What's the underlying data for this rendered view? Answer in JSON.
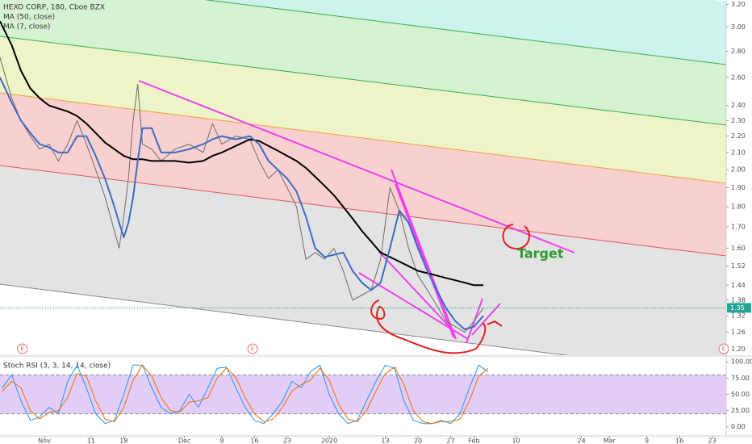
{
  "chart_data": [
    {
      "type": "line",
      "title": "HEXO CORP, 180, Cboe BZX",
      "log_scale": true,
      "x": [
        -9.5,
        -7,
        -5,
        -3,
        -1,
        1,
        3,
        5,
        7,
        9,
        11,
        13,
        15,
        16,
        17,
        18,
        19,
        20,
        21,
        23,
        25,
        28,
        31,
        34,
        36,
        38,
        41,
        44,
        46,
        48,
        50,
        52,
        54,
        56,
        58,
        60,
        62,
        64,
        66,
        68,
        70,
        72,
        74,
        76,
        78,
        80,
        82,
        84,
        86,
        88,
        90,
        92,
        94
      ],
      "series": [
        {
          "name": "HEXO CORP, 180, Cboe BZX",
          "color": "#6d6d6d",
          "values": [
            2.75,
            2.45,
            2.3,
            2.2,
            2.12,
            2.15,
            2.05,
            2.15,
            2.3,
            2.15,
            2.0,
            1.85,
            1.68,
            1.6,
            1.75,
            1.95,
            2.3,
            2.55,
            2.15,
            2.12,
            2.05,
            2.12,
            2.15,
            2.1,
            2.28,
            2.15,
            2.2,
            2.18,
            2.05,
            1.95,
            2.0,
            1.9,
            1.8,
            1.55,
            1.58,
            1.55,
            1.6,
            1.5,
            1.38,
            1.4,
            1.42,
            1.55,
            1.9,
            1.78,
            1.6,
            1.48,
            1.42,
            1.36,
            1.3,
            1.28,
            1.26,
            1.3,
            1.35
          ]
        },
        {
          "name": "MA (50, close)",
          "color": "#000000",
          "values": [
            3.05,
            2.85,
            2.65,
            2.52,
            2.45,
            2.4,
            2.38,
            2.36,
            2.33,
            2.28,
            2.22,
            2.16,
            2.12,
            2.1,
            2.08,
            2.07,
            2.06,
            2.06,
            2.06,
            2.05,
            2.05,
            2.05,
            2.04,
            2.05,
            2.08,
            2.1,
            2.14,
            2.18,
            2.17,
            2.14,
            2.11,
            2.08,
            2.05,
            2.01,
            1.96,
            1.91,
            1.86,
            1.8,
            1.74,
            1.68,
            1.63,
            1.58,
            1.56,
            1.54,
            1.52,
            1.5,
            1.49,
            1.48,
            1.47,
            1.46,
            1.45,
            1.44,
            1.44
          ]
        },
        {
          "name": "MA (7, close)",
          "color": "#3b6cc4",
          "values": [
            2.6,
            2.42,
            2.3,
            2.22,
            2.15,
            2.13,
            2.1,
            2.1,
            2.2,
            2.2,
            2.08,
            1.95,
            1.8,
            1.72,
            1.65,
            1.72,
            1.85,
            2.05,
            2.25,
            2.25,
            2.1,
            2.1,
            2.12,
            2.15,
            2.18,
            2.2,
            2.18,
            2.2,
            2.15,
            2.05,
            2.0,
            1.95,
            1.88,
            1.75,
            1.6,
            1.56,
            1.57,
            1.58,
            1.5,
            1.45,
            1.42,
            1.45,
            1.6,
            1.78,
            1.72,
            1.6,
            1.5,
            1.42,
            1.35,
            1.3,
            1.27,
            1.28,
            1.32
          ]
        }
      ],
      "last_price": 1.35,
      "annotations": [
        "Target"
      ],
      "earnings_markers": [
        {
          "x": -4.7,
          "label": "E"
        },
        {
          "x": 44.6,
          "label": "E"
        },
        {
          "x": 145.5,
          "label": "E"
        }
      ],
      "xlim": [
        -9.5,
        146
      ],
      "ylim": [
        1.18,
        3.24
      ],
      "xticks": [
        {
          "value": 0,
          "label": "Nov"
        },
        {
          "value": 10,
          "label": "11"
        },
        {
          "value": 17,
          "label": "18"
        },
        {
          "value": 30,
          "label": "Dec"
        },
        {
          "value": 38,
          "label": "9"
        },
        {
          "value": 45,
          "label": "16"
        },
        {
          "value": 52,
          "label": "23"
        },
        {
          "value": 61,
          "label": "2020"
        },
        {
          "value": 73,
          "label": "13"
        },
        {
          "value": 80,
          "label": "20"
        },
        {
          "value": 87,
          "label": "27"
        },
        {
          "value": 92,
          "label": "Feb"
        },
        {
          "value": 101,
          "label": "10"
        },
        {
          "value": 115,
          "label": "24"
        },
        {
          "value": 121,
          "label": "Mar"
        },
        {
          "value": 129,
          "label": "9"
        },
        {
          "value": 136,
          "label": "16"
        },
        {
          "value": 143,
          "label": "23"
        }
      ],
      "yticks": [
        {
          "value": 3.2,
          "label": "3.20"
        },
        {
          "value": 3.0,
          "label": "3.00"
        },
        {
          "value": 2.8,
          "label": "2.80"
        },
        {
          "value": 2.6,
          "label": "2.60"
        },
        {
          "value": 2.4,
          "label": "2.40"
        },
        {
          "value": 2.3,
          "label": "2.30"
        },
        {
          "value": 2.2,
          "label": "2.20"
        },
        {
          "value": 2.1,
          "label": "2.10"
        },
        {
          "value": 2.0,
          "label": "2.00"
        },
        {
          "value": 1.9,
          "label": "1.90"
        },
        {
          "value": 1.8,
          "label": "1.80"
        },
        {
          "value": 1.7,
          "label": "1.70"
        },
        {
          "value": 1.6,
          "label": "1.60"
        },
        1.52,
        1.44,
        1.38,
        1.32,
        1.26,
        {
          "value": 1.2,
          "label": "1.20"
        }
      ]
    },
    {
      "type": "line",
      "title": "Stoch RSI (3, 3, 14, 14, close)",
      "x": [
        -9,
        -7,
        -5,
        -3,
        -1,
        1,
        3,
        5,
        7,
        9,
        11,
        13,
        15,
        17,
        19,
        21,
        23,
        25,
        27,
        29,
        31,
        33,
        35,
        37,
        39,
        41,
        43,
        45,
        47,
        49,
        51,
        53,
        55,
        57,
        59,
        61,
        63,
        65,
        67,
        69,
        71,
        73,
        75,
        77,
        79,
        81,
        83,
        85,
        87,
        89,
        91,
        93,
        95
      ],
      "series": [
        {
          "color": "#2196f3",
          "values": [
            60,
            80,
            40,
            10,
            15,
            30,
            20,
            70,
            95,
            60,
            20,
            5,
            10,
            50,
            95,
            95,
            60,
            30,
            20,
            25,
            50,
            30,
            60,
            90,
            92,
            60,
            30,
            10,
            5,
            20,
            40,
            70,
            60,
            85,
            95,
            50,
            20,
            5,
            10,
            40,
            70,
            95,
            90,
            40,
            10,
            5,
            5,
            10,
            5,
            20,
            60,
            95,
            85
          ]
        },
        {
          "color": "#ef6c00",
          "values": [
            55,
            70,
            60,
            25,
            12,
            22,
            25,
            45,
            82,
            78,
            40,
            12,
            8,
            30,
            72,
            95,
            78,
            45,
            25,
            22,
            38,
            40,
            45,
            75,
            91,
            76,
            45,
            20,
            8,
            12,
            30,
            55,
            65,
            72,
            90,
            72,
            35,
            12,
            8,
            25,
            55,
            82,
            92,
            65,
            25,
            8,
            5,
            8,
            8,
            12,
            40,
            78,
            90
          ]
        }
      ],
      "band": [
        20,
        80
      ],
      "xlim": [
        -9.5,
        146
      ],
      "ylim": [
        -14,
        109
      ],
      "yticks": [
        {
          "value": 100,
          "label": "100.00"
        },
        {
          "value": 75,
          "label": "75.00"
        },
        {
          "value": 50,
          "label": "50.00"
        },
        {
          "value": 25,
          "label": "25.00"
        },
        {
          "value": 0,
          "label": "0.00"
        }
      ]
    }
  ]
}
